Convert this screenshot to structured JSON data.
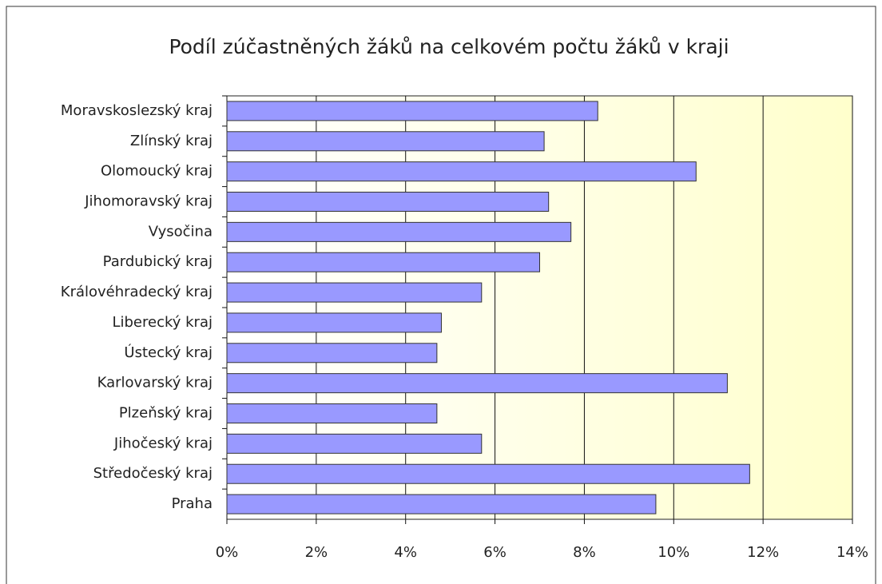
{
  "chart_data": {
    "type": "bar",
    "orientation": "horizontal",
    "title": "Podíl zúčastněných žáků na celkovém počtu žáků v kraji",
    "categories": [
      "Moravskoslezský kraj",
      "Zlínský kraj",
      "Olomoucký kraj",
      "Jihomoravský kraj",
      "Vysočina",
      "Pardubický kraj",
      "Královéhradecký kraj",
      "Liberecký kraj",
      "Ústecký kraj",
      "Karlovarský kraj",
      "Plzeňský kraj",
      "Jihočeský kraj",
      "Středočeský kraj",
      "Praha"
    ],
    "values": [
      8.3,
      7.1,
      10.5,
      7.2,
      7.7,
      7.0,
      5.7,
      4.8,
      4.7,
      11.2,
      4.7,
      5.7,
      11.7,
      9.6
    ],
    "color": "#9999ff",
    "xlim": [
      0,
      14
    ],
    "xticks": [
      {
        "value": 0,
        "label": "0%"
      },
      {
        "value": 2,
        "label": "2%"
      },
      {
        "value": 4,
        "label": "4%"
      },
      {
        "value": 6,
        "label": "6%"
      },
      {
        "value": 8,
        "label": "8%"
      },
      {
        "value": 10,
        "label": "10%"
      },
      {
        "value": 12,
        "label": "12%"
      },
      {
        "value": 14,
        "label": "14%"
      }
    ],
    "grid": true
  }
}
